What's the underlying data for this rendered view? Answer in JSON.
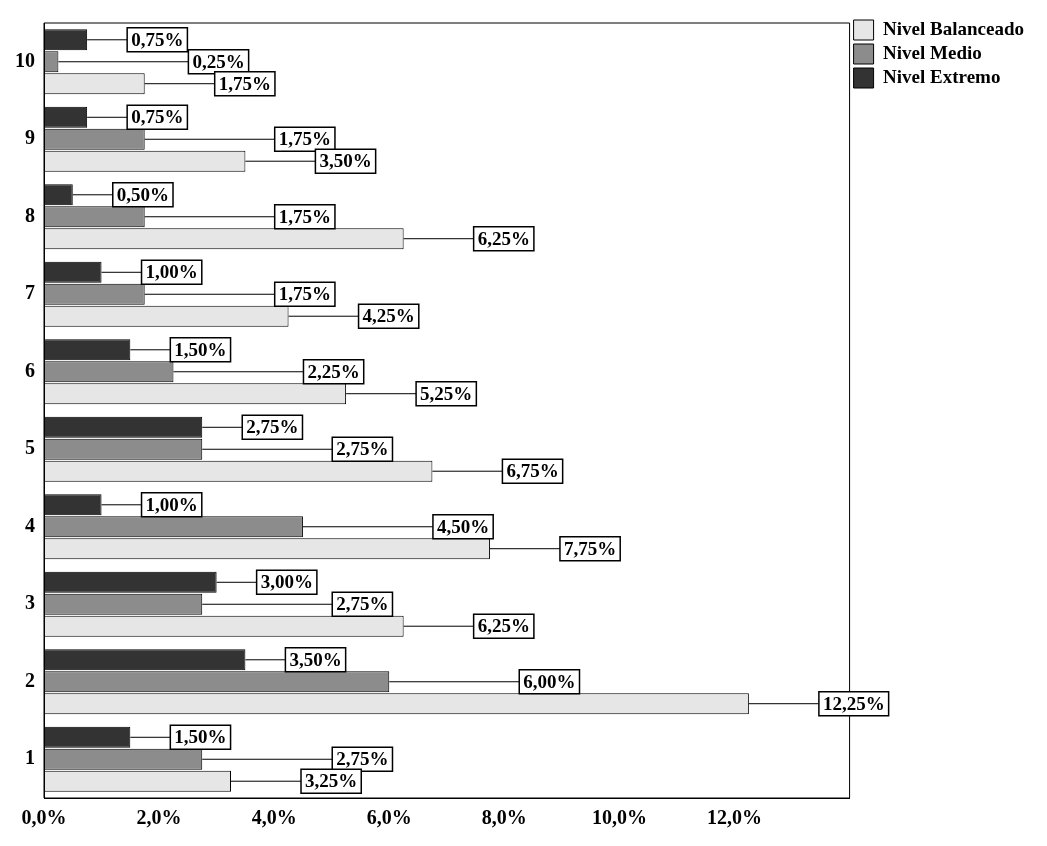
{
  "chart_data": {
    "type": "bar",
    "orientation": "horizontal",
    "categories": [
      "10",
      "9",
      "8",
      "7",
      "6",
      "5",
      "4",
      "3",
      "2",
      "1"
    ],
    "series": [
      {
        "name": "Nivel Balanceado",
        "color": "#e6e6e6",
        "values": [
          1.75,
          3.5,
          6.25,
          4.25,
          5.25,
          6.75,
          7.75,
          6.25,
          12.25,
          3.25
        ],
        "value_labels": [
          "1,75%",
          "3,50%",
          "6,25%",
          "4,25%",
          "5,25%",
          "6,75%",
          "7,75%",
          "6,25%",
          "12,25%",
          "3,25%"
        ]
      },
      {
        "name": "Nivel Medio",
        "color": "#8c8c8c",
        "values": [
          0.25,
          1.75,
          1.75,
          1.75,
          2.25,
          2.75,
          4.5,
          2.75,
          6.0,
          2.75
        ],
        "value_labels": [
          "0,25%",
          "1,75%",
          "1,75%",
          "1,75%",
          "2,25%",
          "2,75%",
          "4,50%",
          "2,75%",
          "6,00%",
          "2,75%"
        ]
      },
      {
        "name": "Nivel Extremo",
        "color": "#333333",
        "values": [
          0.75,
          0.75,
          0.5,
          1.0,
          1.5,
          2.75,
          1.0,
          3.0,
          3.5,
          1.5
        ],
        "value_labels": [
          "0,75%",
          "0,75%",
          "0,50%",
          "1,00%",
          "1,50%",
          "2,75%",
          "1,00%",
          "3,00%",
          "3,50%",
          "1,50%"
        ]
      }
    ],
    "xlim": [
      0,
      14
    ],
    "xticks": [
      {
        "value": 0,
        "label": "0,0%"
      },
      {
        "value": 2,
        "label": "2,0%"
      },
      {
        "value": 4,
        "label": "4,0%"
      },
      {
        "value": 6,
        "label": "6,0%"
      },
      {
        "value": 8,
        "label": "8,0%"
      },
      {
        "value": 10,
        "label": "10,0%"
      },
      {
        "value": 12,
        "label": "12,0%"
      }
    ],
    "grid": false,
    "legend": "top right"
  }
}
